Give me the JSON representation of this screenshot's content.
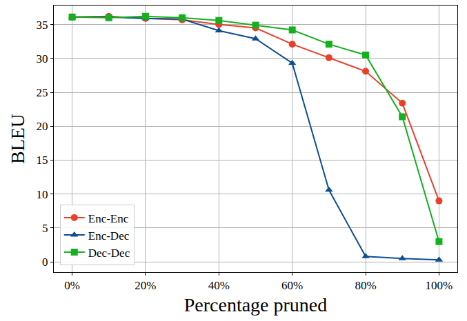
{
  "chart_data": {
    "type": "line",
    "x_label": "Percentage pruned",
    "y_label": "BLEU",
    "x": [
      0,
      10,
      20,
      30,
      40,
      50,
      60,
      70,
      80,
      90,
      100
    ],
    "series": [
      {
        "name": "Enc-Enc",
        "color": "#e8412b",
        "marker": "circle",
        "values": [
          36.1,
          36.2,
          35.9,
          35.7,
          35.0,
          34.5,
          32.1,
          30.1,
          28.1,
          23.4,
          9.0
        ]
      },
      {
        "name": "Enc-Dec",
        "color": "#0d4e94",
        "marker": "triangle-up",
        "values": [
          36.1,
          36.1,
          35.9,
          35.8,
          34.1,
          32.9,
          29.3,
          10.6,
          0.8,
          0.5,
          0.3
        ]
      },
      {
        "name": "Dec-Dec",
        "color": "#14b01e",
        "marker": "square",
        "values": [
          36.1,
          36.0,
          36.2,
          36.0,
          35.6,
          34.9,
          34.2,
          32.1,
          30.5,
          21.4,
          3.0
        ]
      }
    ],
    "xlim": [
      -5,
      105
    ],
    "xticks": [
      {
        "value": 0,
        "label": "0%"
      },
      {
        "value": 20,
        "label": "20%"
      },
      {
        "value": 40,
        "label": "40%"
      },
      {
        "value": 60,
        "label": "60%"
      },
      {
        "value": 80,
        "label": "80%"
      },
      {
        "value": 100,
        "label": "100%"
      }
    ],
    "ylim": [
      -1.5,
      37.8
    ],
    "yticks": [
      0,
      5,
      10,
      15,
      20,
      25,
      30,
      35
    ],
    "grid": true,
    "legend": "lower left"
  }
}
